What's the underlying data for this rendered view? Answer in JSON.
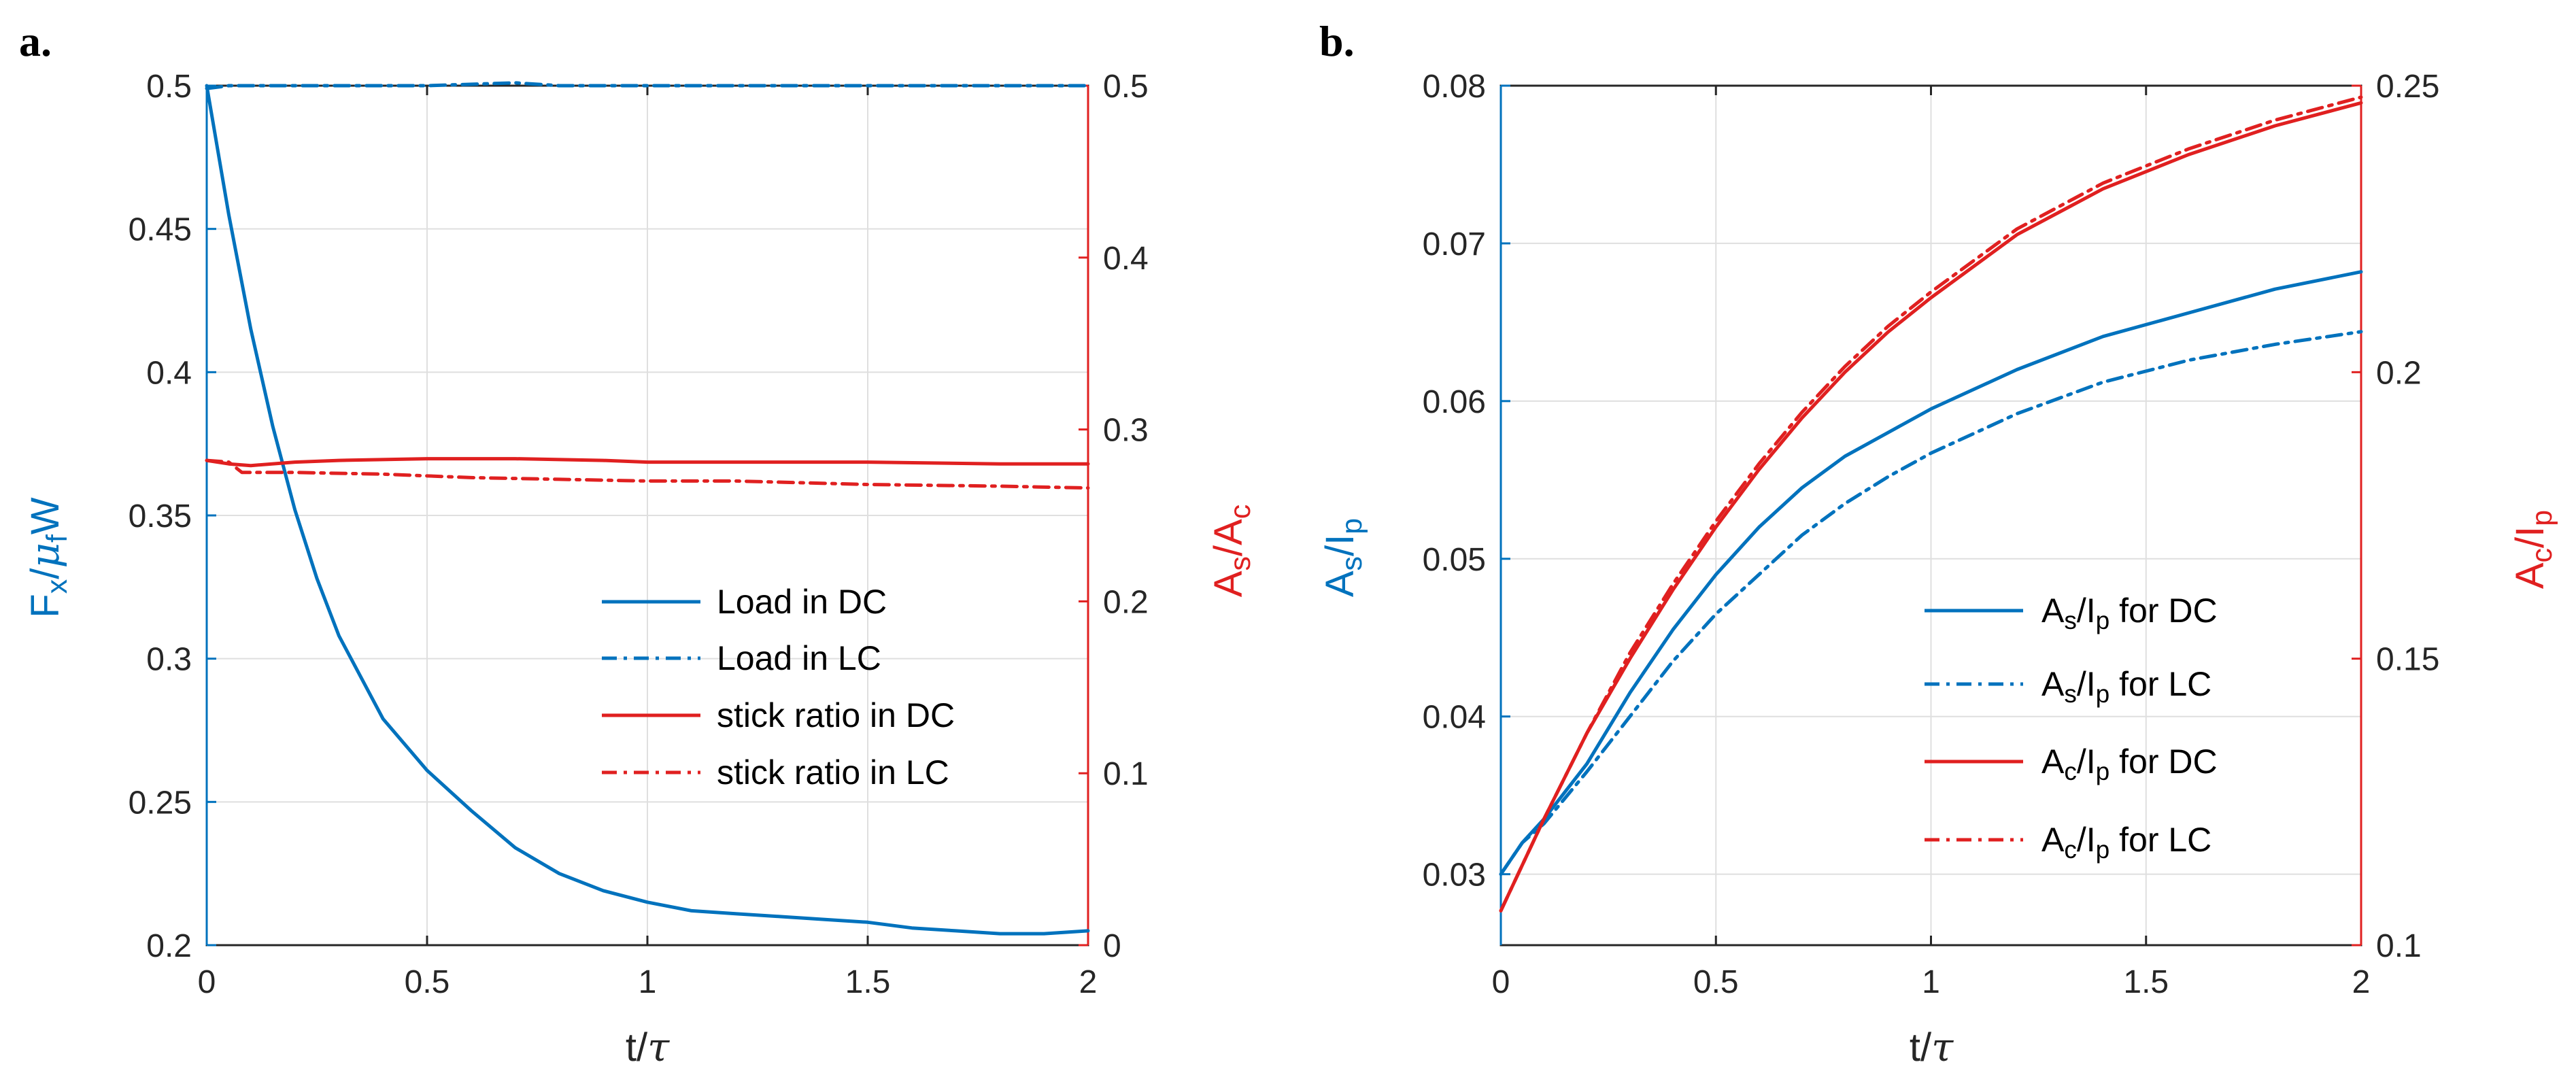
{
  "colors": {
    "blue": "#0072BD",
    "red": "#E02020",
    "axis": "#262626",
    "grid": "#dfdfdf"
  },
  "chart_data": [
    {
      "panel_label": "a.",
      "type": "line",
      "xlabel": {
        "base": "t/",
        "greek": "τ"
      },
      "x_ticks": [
        "0",
        "0.5",
        "1",
        "1.5",
        "2"
      ],
      "xlim": [
        0,
        2
      ],
      "ylabel_left": {
        "parts": [
          "F",
          "x",
          "/",
          "μ",
          "f",
          "W"
        ]
      },
      "ylim_left": [
        0.2,
        0.5
      ],
      "y_ticks_left": [
        "0.2",
        "0.25",
        "0.3",
        "0.35",
        "0.4",
        "0.45",
        "0.5"
      ],
      "ylabel_right": {
        "parts": [
          "A",
          "s",
          "/A",
          "c"
        ]
      },
      "ylim_right": [
        0,
        0.5
      ],
      "y_ticks_right": [
        "0",
        "0.1",
        "0.2",
        "0.3",
        "0.4",
        "0.5"
      ],
      "grid": true,
      "legend_position": "bottom-right",
      "series": [
        {
          "name": "Load in DC",
          "legend_text": "Load in DC",
          "axis": "left",
          "color": "blue",
          "style": "solid",
          "x": [
            0,
            0.05,
            0.1,
            0.15,
            0.2,
            0.25,
            0.3,
            0.4,
            0.5,
            0.6,
            0.7,
            0.8,
            0.9,
            1.0,
            1.1,
            1.2,
            1.3,
            1.4,
            1.5,
            1.6,
            1.7,
            1.8,
            1.9,
            2.0
          ],
          "y": [
            0.5,
            0.455,
            0.415,
            0.381,
            0.352,
            0.328,
            0.308,
            0.279,
            0.261,
            0.247,
            0.234,
            0.225,
            0.219,
            0.215,
            0.212,
            0.211,
            0.21,
            0.209,
            0.208,
            0.206,
            0.205,
            0.204,
            0.204,
            0.205
          ]
        },
        {
          "name": "Load in LC",
          "legend_text": "Load in LC",
          "axis": "left",
          "color": "blue",
          "style": "dashdot",
          "x": [
            0,
            0.05,
            0.1,
            0.25,
            0.5,
            0.7,
            0.8,
            1.0,
            1.2,
            1.4,
            1.6,
            1.8,
            2.0
          ],
          "y": [
            0.499,
            0.5,
            0.5,
            0.5,
            0.5,
            0.501,
            0.5,
            0.5,
            0.5,
            0.5,
            0.5,
            0.5,
            0.5
          ]
        },
        {
          "name": "stick ratio in DC",
          "legend_text": "stick ratio in DC",
          "axis": "right",
          "color": "red",
          "style": "solid",
          "x": [
            0,
            0.05,
            0.1,
            0.2,
            0.3,
            0.5,
            0.7,
            0.9,
            1.0,
            1.2,
            1.5,
            1.8,
            2.0
          ],
          "y": [
            0.282,
            0.28,
            0.279,
            0.281,
            0.282,
            0.283,
            0.283,
            0.282,
            0.281,
            0.281,
            0.281,
            0.28,
            0.28
          ]
        },
        {
          "name": "stick ratio in LC",
          "legend_text": "stick ratio in LC",
          "axis": "right",
          "color": "red",
          "style": "dashdot",
          "x": [
            0,
            0.05,
            0.08,
            0.1,
            0.2,
            0.4,
            0.6,
            0.8,
            1.0,
            1.2,
            1.5,
            1.8,
            2.0
          ],
          "y": [
            0.282,
            0.281,
            0.275,
            0.275,
            0.275,
            0.274,
            0.272,
            0.271,
            0.27,
            0.27,
            0.268,
            0.267,
            0.266
          ]
        }
      ]
    },
    {
      "panel_label": "b.",
      "type": "line",
      "xlabel": {
        "base": "t/",
        "greek": "τ"
      },
      "x_ticks": [
        "0",
        "0.5",
        "1",
        "1.5",
        "2"
      ],
      "xlim": [
        0,
        2
      ],
      "ylabel_left": {
        "parts": [
          "A",
          "s",
          "/I",
          "p"
        ]
      },
      "ylim_left": [
        0.0255,
        0.08
      ],
      "y_ticks_left": [
        "0.03",
        "0.04",
        "0.05",
        "0.06",
        "0.07",
        "0.08"
      ],
      "ylabel_right": {
        "parts": [
          "A",
          "c",
          "/I",
          "p"
        ]
      },
      "ylim_right": [
        0.1,
        0.25
      ],
      "y_ticks_right": [
        "0.1",
        "0.15",
        "0.2",
        "0.25"
      ],
      "grid": true,
      "legend_position": "bottom-right",
      "series": [
        {
          "name": "As/Ip for DC",
          "legend_text": [
            "A",
            "s",
            "/I",
            "p",
            " for DC"
          ],
          "axis": "left",
          "color": "blue",
          "style": "solid",
          "x": [
            0,
            0.05,
            0.1,
            0.2,
            0.3,
            0.4,
            0.5,
            0.6,
            0.7,
            0.8,
            0.9,
            1.0,
            1.2,
            1.4,
            1.6,
            1.8,
            2.0
          ],
          "y": [
            0.03,
            0.032,
            0.0335,
            0.037,
            0.0415,
            0.0455,
            0.049,
            0.052,
            0.0545,
            0.0565,
            0.058,
            0.0595,
            0.062,
            0.0641,
            0.0656,
            0.0671,
            0.0682
          ]
        },
        {
          "name": "As/Ip for LC",
          "legend_text": [
            "A",
            "s",
            "/I",
            "p",
            " for LC"
          ],
          "axis": "left",
          "color": "blue",
          "style": "dashdot",
          "x": [
            0,
            0.05,
            0.1,
            0.2,
            0.3,
            0.4,
            0.5,
            0.6,
            0.7,
            0.8,
            0.9,
            1.0,
            1.2,
            1.4,
            1.6,
            1.8,
            2.0
          ],
          "y": [
            0.03,
            0.032,
            0.0332,
            0.0365,
            0.04,
            0.0435,
            0.0465,
            0.049,
            0.0515,
            0.0535,
            0.0552,
            0.0567,
            0.0592,
            0.0612,
            0.0626,
            0.0636,
            0.0644
          ]
        },
        {
          "name": "Ac/Ip for DC",
          "legend_text": [
            "A",
            "c",
            "/I",
            "p",
            " for DC"
          ],
          "axis": "right",
          "color": "red",
          "style": "solid",
          "x": [
            0,
            0.1,
            0.2,
            0.3,
            0.4,
            0.5,
            0.6,
            0.7,
            0.8,
            0.9,
            1.0,
            1.2,
            1.4,
            1.6,
            1.8,
            2.0
          ],
          "y": [
            0.106,
            0.122,
            0.137,
            0.15,
            0.162,
            0.173,
            0.183,
            0.192,
            0.2,
            0.207,
            0.213,
            0.224,
            0.232,
            0.238,
            0.243,
            0.247
          ]
        },
        {
          "name": "Ac/Ip for LC",
          "legend_text": [
            "A",
            "c",
            "/I",
            "p",
            " for LC"
          ],
          "axis": "right",
          "color": "red",
          "style": "dashdot",
          "x": [
            0,
            0.1,
            0.2,
            0.3,
            0.4,
            0.5,
            0.6,
            0.7,
            0.8,
            0.9,
            1.0,
            1.2,
            1.4,
            1.6,
            1.8,
            2.0
          ],
          "y": [
            0.106,
            0.122,
            0.137,
            0.151,
            0.163,
            0.174,
            0.184,
            0.193,
            0.201,
            0.208,
            0.214,
            0.225,
            0.233,
            0.239,
            0.244,
            0.248
          ]
        }
      ]
    }
  ]
}
